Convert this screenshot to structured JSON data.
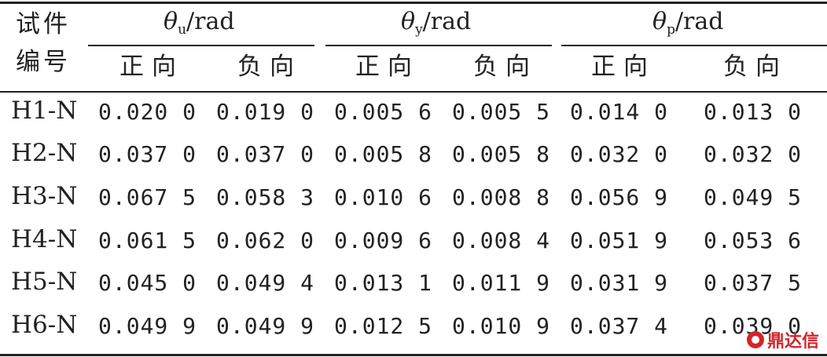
{
  "header": {
    "specimen_label_line1": "试件",
    "specimen_label_line2": "编号",
    "groups": [
      {
        "symbol": "θ",
        "sub": "u",
        "unit": "/rad"
      },
      {
        "symbol": "θ",
        "sub": "y",
        "unit": "/rad"
      },
      {
        "symbol": "θ",
        "sub": "p",
        "unit": "/rad"
      }
    ],
    "positive": "正向",
    "negative": "负向"
  },
  "rows": [
    {
      "id": "H1-N",
      "values": [
        "0.020 0",
        "0.019 0",
        "0.005 6",
        "0.005 5",
        "0.014 0",
        "0.013 0"
      ]
    },
    {
      "id": "H2-N",
      "values": [
        "0.037 0",
        "0.037 0",
        "0.005 8",
        "0.005 8",
        "0.032 0",
        "0.032 0"
      ]
    },
    {
      "id": "H3-N",
      "values": [
        "0.067 5",
        "0.058 3",
        "0.010 6",
        "0.008 8",
        "0.056 9",
        "0.049 5"
      ]
    },
    {
      "id": "H4-N",
      "values": [
        "0.061 5",
        "0.062 0",
        "0.009 6",
        "0.008 4",
        "0.051 9",
        "0.053 6"
      ]
    },
    {
      "id": "H5-N",
      "values": [
        "0.045 0",
        "0.049 4",
        "0.013 1",
        "0.011 9",
        "0.031 9",
        "0.037 5"
      ]
    },
    {
      "id": "H6-N",
      "values": [
        "0.049 9",
        "0.049 9",
        "0.012 5",
        "0.010 9",
        "0.037 4",
        "0.039 0"
      ]
    }
  ],
  "watermark": {
    "text": "鼎达信"
  }
}
